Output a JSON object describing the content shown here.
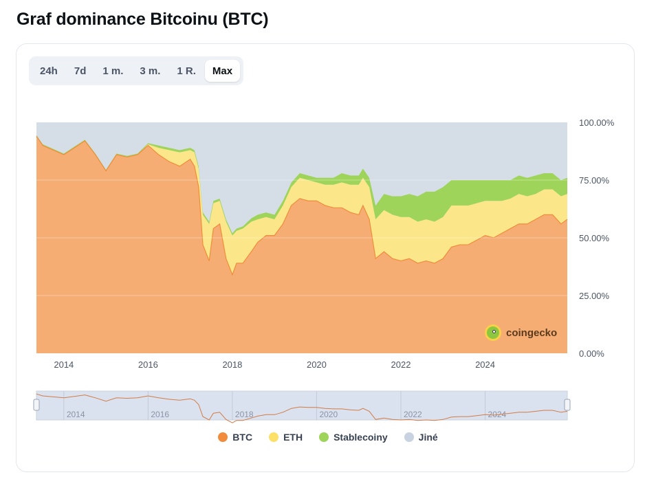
{
  "title": "Graf dominance Bitcoinu (BTC)",
  "range_buttons": [
    {
      "label": "24h",
      "active": false
    },
    {
      "label": "7d",
      "active": false
    },
    {
      "label": "1 m.",
      "active": false
    },
    {
      "label": "3 m.",
      "active": false
    },
    {
      "label": "1 R.",
      "active": false
    },
    {
      "label": "Max",
      "active": true
    }
  ],
  "watermark": "coingecko",
  "colors": {
    "btc": "#f5ad73",
    "btc_line": "#f08c3b",
    "eth": "#fbe78a",
    "stable": "#9ed45a",
    "other": "#d5dde7",
    "navigator_fill": "#dbe2ef",
    "navigator_line": "#d27b46"
  },
  "chart_data": {
    "type": "area",
    "stacked": true,
    "ylim": [
      0,
      100
    ],
    "y_ticks": [
      "0.00%",
      "25.00%",
      "50.00%",
      "75.00%",
      "100.00%"
    ],
    "x_ticks": [
      "2014",
      "2016",
      "2018",
      "2020",
      "2022",
      "2024"
    ],
    "x_range": [
      2013.35,
      2025.95
    ],
    "grid": true,
    "legend_position": "bottom",
    "x": [
      2013.35,
      2013.5,
      2013.75,
      2014.0,
      2014.25,
      2014.5,
      2014.75,
      2015.0,
      2015.25,
      2015.5,
      2015.75,
      2016.0,
      2016.25,
      2016.5,
      2016.75,
      2017.0,
      2017.1,
      2017.2,
      2017.3,
      2017.45,
      2017.55,
      2017.7,
      2017.85,
      2018.0,
      2018.1,
      2018.25,
      2018.45,
      2018.6,
      2018.8,
      2019.0,
      2019.2,
      2019.4,
      2019.6,
      2019.8,
      2020.0,
      2020.2,
      2020.4,
      2020.6,
      2020.8,
      2021.0,
      2021.1,
      2021.25,
      2021.4,
      2021.6,
      2021.8,
      2022.0,
      2022.2,
      2022.4,
      2022.6,
      2022.8,
      2023.0,
      2023.2,
      2023.4,
      2023.6,
      2023.8,
      2024.0,
      2024.2,
      2024.4,
      2024.6,
      2024.8,
      2025.0,
      2025.2,
      2025.4,
      2025.6,
      2025.8,
      2025.95
    ],
    "series": [
      {
        "name": "BTC",
        "values": [
          94,
          90,
          88,
          86,
          89,
          92,
          86,
          79,
          86,
          85,
          86,
          90,
          86,
          83,
          81,
          84,
          81,
          72,
          47,
          40,
          54,
          56,
          41,
          34,
          39,
          39,
          44,
          48,
          51,
          51,
          56,
          64,
          67,
          66,
          66,
          64,
          63,
          63,
          61,
          60,
          64,
          58,
          41,
          44,
          41,
          40,
          41,
          39,
          40,
          39,
          41,
          46,
          47,
          47,
          49,
          51,
          50,
          52,
          54,
          56,
          56,
          58,
          60,
          60,
          56,
          58
        ]
      },
      {
        "name": "ETH",
        "values": [
          0,
          0,
          0,
          0,
          0,
          0,
          0,
          0,
          0,
          0,
          0,
          0.5,
          3,
          5,
          6,
          4,
          6,
          8,
          13,
          16,
          11,
          10,
          16,
          17,
          14,
          15,
          13,
          10,
          8,
          7,
          8,
          8,
          9,
          9,
          8,
          9,
          10,
          11,
          12,
          13,
          12,
          14,
          17,
          18,
          19,
          19,
          18,
          18,
          18,
          18,
          18,
          18,
          17,
          17,
          16,
          15,
          16,
          14,
          13,
          13,
          12,
          11,
          11,
          11,
          12,
          11
        ]
      },
      {
        "name": "Stablecoiny",
        "values": [
          0.5,
          0.5,
          0.5,
          0.5,
          0.5,
          0.5,
          0.5,
          0.5,
          0.5,
          0.5,
          0.5,
          0.5,
          1,
          1,
          1,
          1,
          1,
          1,
          1,
          1,
          1,
          1,
          1,
          1,
          1,
          1,
          1.5,
          2,
          2,
          2,
          2,
          2,
          2,
          2,
          2,
          3,
          3,
          4,
          4,
          4,
          4,
          4,
          6,
          7,
          8,
          9,
          10,
          11,
          12,
          13,
          13,
          11,
          11,
          11,
          10,
          9,
          9,
          9,
          8,
          8,
          8,
          8,
          7,
          7,
          7,
          7
        ]
      },
      {
        "name": "Jiné",
        "values": [
          5.5,
          9.5,
          11.5,
          13.5,
          10.5,
          7.5,
          13.5,
          20.5,
          13.5,
          14.5,
          13.5,
          9,
          10,
          11,
          12,
          11,
          12,
          19,
          39,
          43,
          34,
          33,
          42,
          48,
          46,
          45,
          41.5,
          40,
          39,
          40,
          34,
          26,
          22,
          23,
          24,
          24,
          24,
          22,
          23,
          23,
          20,
          24,
          36,
          31,
          32,
          32,
          31,
          32,
          30,
          30,
          28,
          25,
          25,
          25,
          25,
          25,
          25,
          25,
          25,
          23,
          24,
          23,
          22,
          22,
          25,
          24
        ]
      }
    ]
  }
}
